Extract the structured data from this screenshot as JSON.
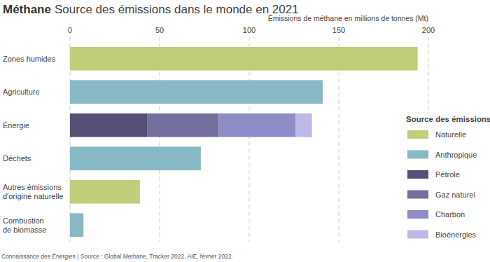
{
  "chart_data": {
    "type": "bar",
    "orientation": "horizontal",
    "stacked": true,
    "title": "Méthane",
    "subtitle": "Source des émissions dans le monde en 2021",
    "x_label": "Émissions de méthane en millions de tonnes (Mt)",
    "source": "Connaissance des Énergies | Source : Global Methane, Tracker 2022, AIE, février 2022.",
    "legend_title": "Source des émissions",
    "legend": "right",
    "grid": true,
    "categories": [
      "Zones humides",
      "Agriculture",
      "Énergie",
      "Déchets",
      "Autres émissions\nd'origine naturelle",
      "Combustion\nde biomasse"
    ],
    "series": [
      {
        "name": "Naturelle",
        "color": "#c2cd7a",
        "values": [
          194,
          null,
          null,
          null,
          39,
          null
        ]
      },
      {
        "name": "Anthropique",
        "color": "#88b8c4",
        "values": [
          null,
          141,
          null,
          73,
          null,
          7.5
        ]
      },
      {
        "name": "Pétrole",
        "color": "#565077",
        "values": [
          null,
          null,
          43,
          null,
          null,
          null
        ]
      },
      {
        "name": "Gaz naturel",
        "color": "#736f9f",
        "values": [
          null,
          null,
          40,
          null,
          null,
          null
        ]
      },
      {
        "name": "Charbon",
        "color": "#8f8dc8",
        "values": [
          null,
          null,
          43,
          null,
          null,
          null
        ]
      },
      {
        "name": "Bioénergies",
        "color": "#bcb9e6",
        "values": [
          null,
          null,
          9,
          null,
          null,
          null
        ]
      }
    ],
    "xlim": [
      0,
      200
    ],
    "xticks": [
      0,
      50,
      100,
      150,
      200
    ]
  }
}
